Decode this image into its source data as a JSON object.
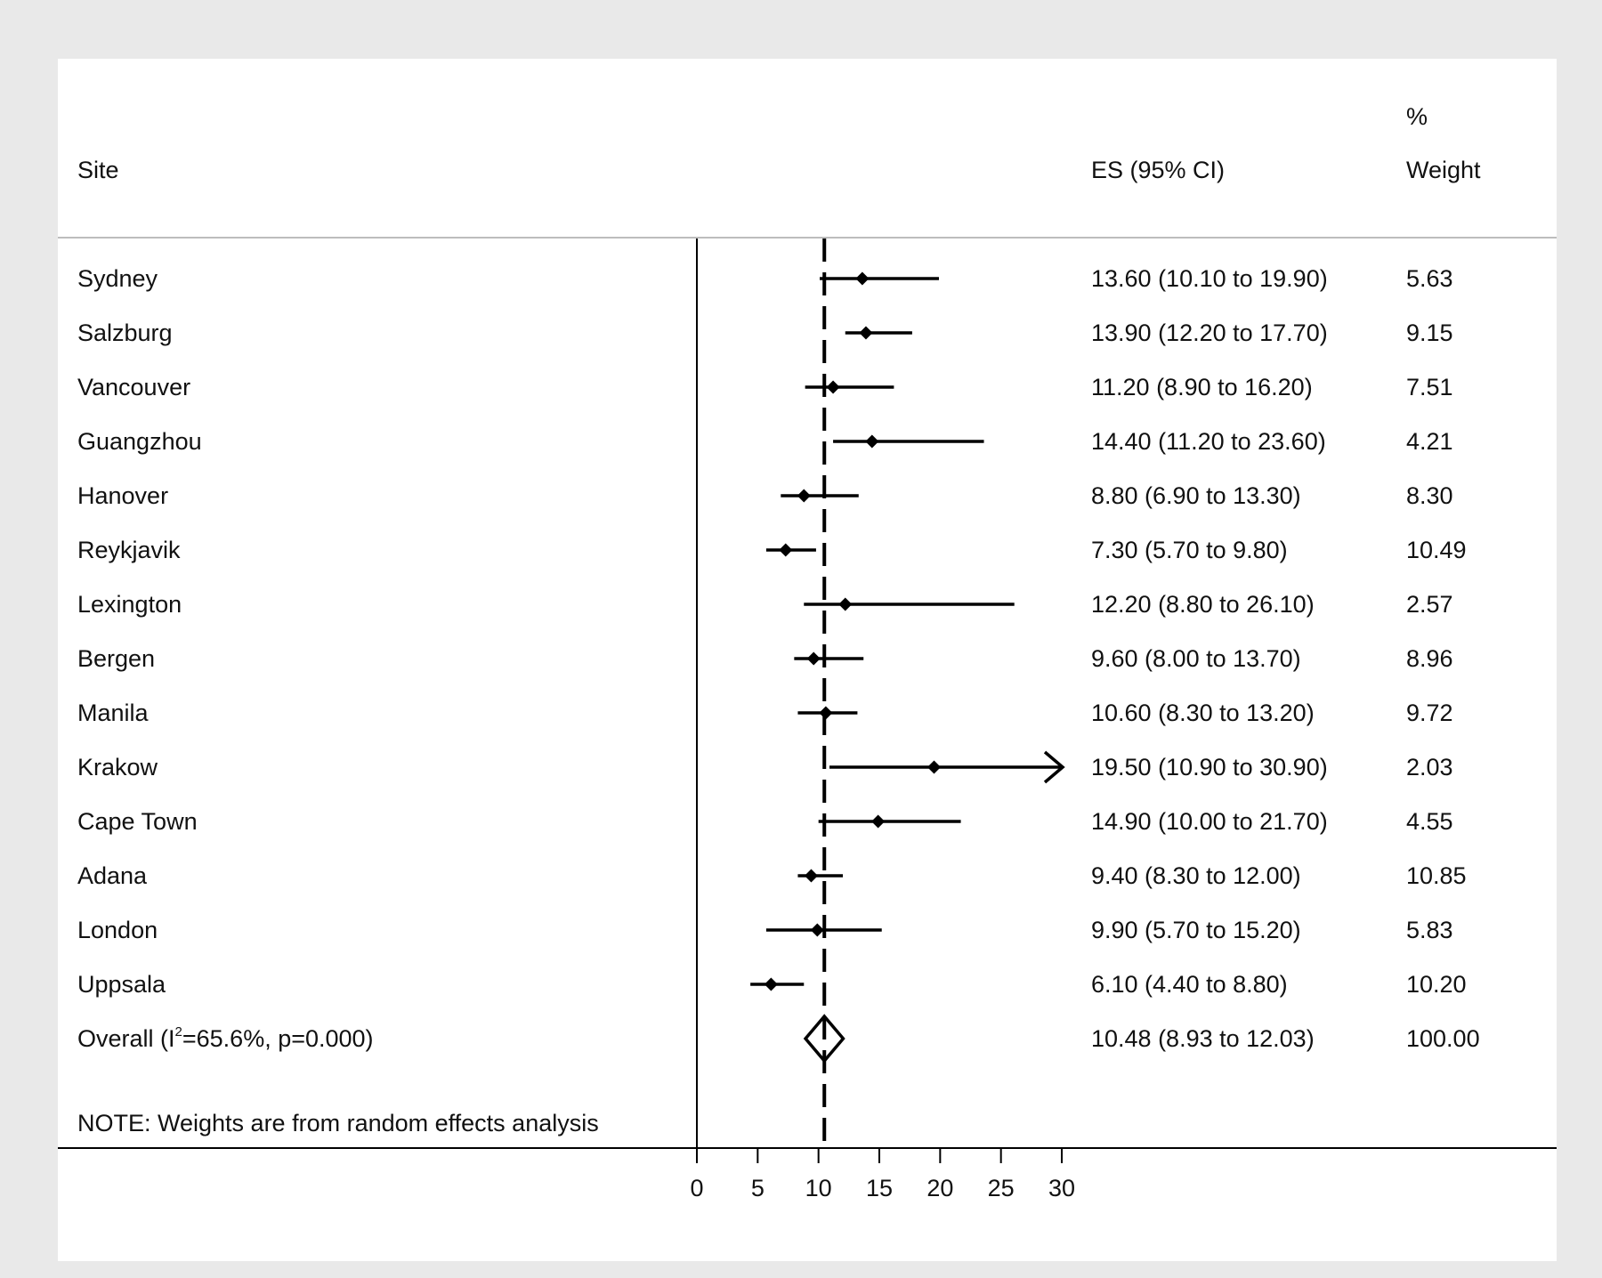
{
  "colors": {
    "background": "#e9e9e9",
    "panel": "#ffffff",
    "ink": "#000000",
    "rule": "#bdbdbd"
  },
  "chart_data": {
    "type": "forest",
    "headers": {
      "site": "Site",
      "es": "ES (95% CI)",
      "weight_top": "%",
      "weight": "Weight"
    },
    "xlim": [
      0,
      30
    ],
    "xticks": [
      0,
      5,
      10,
      15,
      20,
      25,
      30
    ],
    "xtick_labels": [
      "0",
      "5",
      "10",
      "15",
      "20",
      "25",
      "30"
    ],
    "reference_line": 10.48,
    "studies": [
      {
        "site": "Sydney",
        "es": 13.6,
        "lo": 10.1,
        "hi": 19.9,
        "es_text": "13.60 (10.10 to 19.90)",
        "weight": "5.63"
      },
      {
        "site": "Salzburg",
        "es": 13.9,
        "lo": 12.2,
        "hi": 17.7,
        "es_text": "13.90 (12.20 to 17.70)",
        "weight": "9.15"
      },
      {
        "site": "Vancouver",
        "es": 11.2,
        "lo": 8.9,
        "hi": 16.2,
        "es_text": "11.20 (8.90 to 16.20)",
        "weight": "7.51"
      },
      {
        "site": "Guangzhou",
        "es": 14.4,
        "lo": 11.2,
        "hi": 23.6,
        "es_text": "14.40 (11.20 to 23.60)",
        "weight": "4.21"
      },
      {
        "site": "Hanover",
        "es": 8.8,
        "lo": 6.9,
        "hi": 13.3,
        "es_text": "8.80 (6.90 to 13.30)",
        "weight": "8.30"
      },
      {
        "site": "Reykjavik",
        "es": 7.3,
        "lo": 5.7,
        "hi": 9.8,
        "es_text": "7.30 (5.70 to 9.80)",
        "weight": "10.49"
      },
      {
        "site": "Lexington",
        "es": 12.2,
        "lo": 8.8,
        "hi": 26.1,
        "es_text": "12.20 (8.80 to 26.10)",
        "weight": "2.57"
      },
      {
        "site": "Bergen",
        "es": 9.6,
        "lo": 8.0,
        "hi": 13.7,
        "es_text": "9.60 (8.00 to 13.70)",
        "weight": "8.96"
      },
      {
        "site": "Manila",
        "es": 10.6,
        "lo": 8.3,
        "hi": 13.2,
        "es_text": "10.60 (8.30 to 13.20)",
        "weight": "9.72"
      },
      {
        "site": "Krakow",
        "es": 19.5,
        "lo": 10.9,
        "hi": 30.9,
        "es_text": "19.50 (10.90 to 30.90)",
        "weight": "2.03"
      },
      {
        "site": "Cape Town",
        "es": 14.9,
        "lo": 10.0,
        "hi": 21.7,
        "es_text": "14.90 (10.00 to 21.70)",
        "weight": "4.55"
      },
      {
        "site": "Adana",
        "es": 9.4,
        "lo": 8.3,
        "hi": 12.0,
        "es_text": "9.40 (8.30 to 12.00)",
        "weight": "10.85"
      },
      {
        "site": "London",
        "es": 9.9,
        "lo": 5.7,
        "hi": 15.2,
        "es_text": "9.90 (5.70 to 15.20)",
        "weight": "5.83"
      },
      {
        "site": "Uppsala",
        "es": 6.1,
        "lo": 4.4,
        "hi": 8.8,
        "es_text": "6.10 (4.40 to 8.80)",
        "weight": "10.20"
      }
    ],
    "overall": {
      "label_prefix": "Overall  (I",
      "label_sup": "2",
      "label_suffix": "=65.6%, p=0.000)",
      "es": 10.48,
      "lo": 8.93,
      "hi": 12.03,
      "es_text": "10.48 (8.93 to 12.03)",
      "weight": "100.00"
    },
    "note": "NOTE: Weights are from random effects analysis"
  }
}
